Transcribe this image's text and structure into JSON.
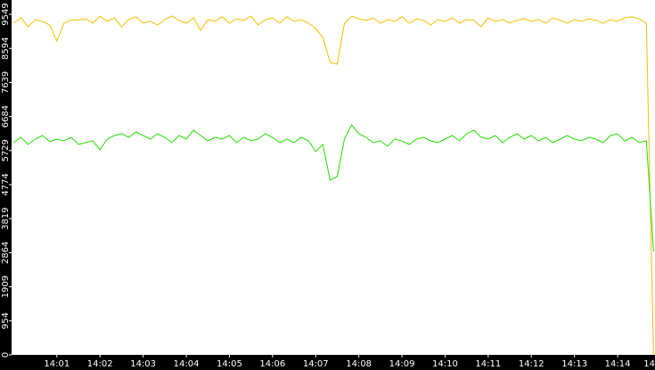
{
  "chart_data": {
    "type": "line",
    "x": [
      50400,
      50410,
      50420,
      50430,
      50440,
      50450,
      50460,
      50470,
      50480,
      50490,
      50500,
      50510,
      50520,
      50530,
      50540,
      50550,
      50560,
      50570,
      50580,
      50590,
      50600,
      50610,
      50620,
      50630,
      50640,
      50650,
      50660,
      50670,
      50680,
      50690,
      50700,
      50710,
      50720,
      50730,
      50740,
      50750,
      50760,
      50770,
      50780,
      50790,
      50800,
      50810,
      50820,
      50830,
      50840,
      50850,
      50860,
      50870,
      50880,
      50890,
      50900,
      50910,
      50920,
      50930,
      50940,
      50950,
      50960,
      50970,
      50980,
      50990,
      51000,
      51010,
      51020,
      51030,
      51040,
      51050,
      51060,
      51070,
      51080,
      51090,
      51100,
      51110,
      51120,
      51130,
      51140,
      51150,
      51160,
      51170,
      51180,
      51190,
      51200,
      51210,
      51220,
      51230,
      51240,
      51250,
      51260,
      51270,
      51280,
      51290
    ],
    "series": [
      {
        "color": "#f0c000",
        "values": [
          9300,
          9450,
          9200,
          9400,
          9350,
          9250,
          8800,
          9300,
          9400,
          9380,
          9420,
          9300,
          9500,
          9350,
          9450,
          9200,
          9400,
          9480,
          9300,
          9350,
          9250,
          9400,
          9500,
          9380,
          9300,
          9450,
          9100,
          9400,
          9350,
          9480,
          9300,
          9420,
          9380,
          9500,
          9250,
          9400,
          9450,
          9300,
          9480,
          9350,
          9400,
          9300,
          9150,
          8900,
          8200,
          8150,
          9300,
          9500,
          9420,
          9380,
          9450,
          9300,
          9400,
          9350,
          9480,
          9300,
          9420,
          9380,
          9250,
          9400,
          9350,
          9450,
          9300,
          9400,
          9380,
          9200,
          9450,
          9350,
          9400,
          9300,
          9380,
          9420,
          9350,
          9400,
          9300,
          9450,
          9380,
          9300,
          9400,
          9350,
          9420,
          9380,
          9300,
          9400,
          9350,
          9450,
          9480,
          9420,
          9300,
          0
        ]
      },
      {
        "color": "#22e000",
        "values": [
          5950,
          6100,
          5900,
          6050,
          6150,
          5980,
          6050,
          6000,
          6100,
          5900,
          5950,
          6000,
          5750,
          6050,
          6150,
          6200,
          6100,
          6250,
          6150,
          6050,
          6200,
          6100,
          5950,
          6150,
          6050,
          6300,
          6150,
          6000,
          6100,
          6050,
          6150,
          5950,
          6100,
          6000,
          6050,
          6200,
          6100,
          5950,
          6050,
          5950,
          6100,
          6000,
          5700,
          5900,
          4900,
          5000,
          6050,
          6450,
          6200,
          6100,
          5950,
          6000,
          5850,
          6050,
          6000,
          5900,
          6050,
          6100,
          6000,
          5950,
          6050,
          6150,
          6000,
          6200,
          6300,
          6100,
          6050,
          6150,
          5950,
          6100,
          6200,
          6050,
          6150,
          6000,
          6100,
          5950,
          6050,
          6150,
          6050,
          6000,
          6100,
          6050,
          5950,
          6150,
          6200,
          6000,
          6100,
          5950,
          6000,
          2900
        ]
      }
    ],
    "xlim": [
      50397,
      51292
    ],
    "xticks": [
      {
        "value": 50460,
        "label": "14:01"
      },
      {
        "value": 50520,
        "label": "14:02"
      },
      {
        "value": 50580,
        "label": "14:03"
      },
      {
        "value": 50640,
        "label": "14:04"
      },
      {
        "value": 50700,
        "label": "14:05"
      },
      {
        "value": 50760,
        "label": "14:06"
      },
      {
        "value": 50820,
        "label": "14:07"
      },
      {
        "value": 50880,
        "label": "14:08"
      },
      {
        "value": 50940,
        "label": "14:09"
      },
      {
        "value": 51000,
        "label": "14:10"
      },
      {
        "value": 51060,
        "label": "14:11"
      },
      {
        "value": 51120,
        "label": "14:12"
      },
      {
        "value": 51180,
        "label": "14:13"
      },
      {
        "value": 51240,
        "label": "14:14"
      },
      {
        "value": 51300,
        "label": "14"
      }
    ],
    "ylim": [
      0,
      9950
    ],
    "yticks": [
      0,
      954,
      1909,
      2864,
      3819,
      4774,
      5729,
      6684,
      7639,
      8594,
      9549
    ]
  }
}
